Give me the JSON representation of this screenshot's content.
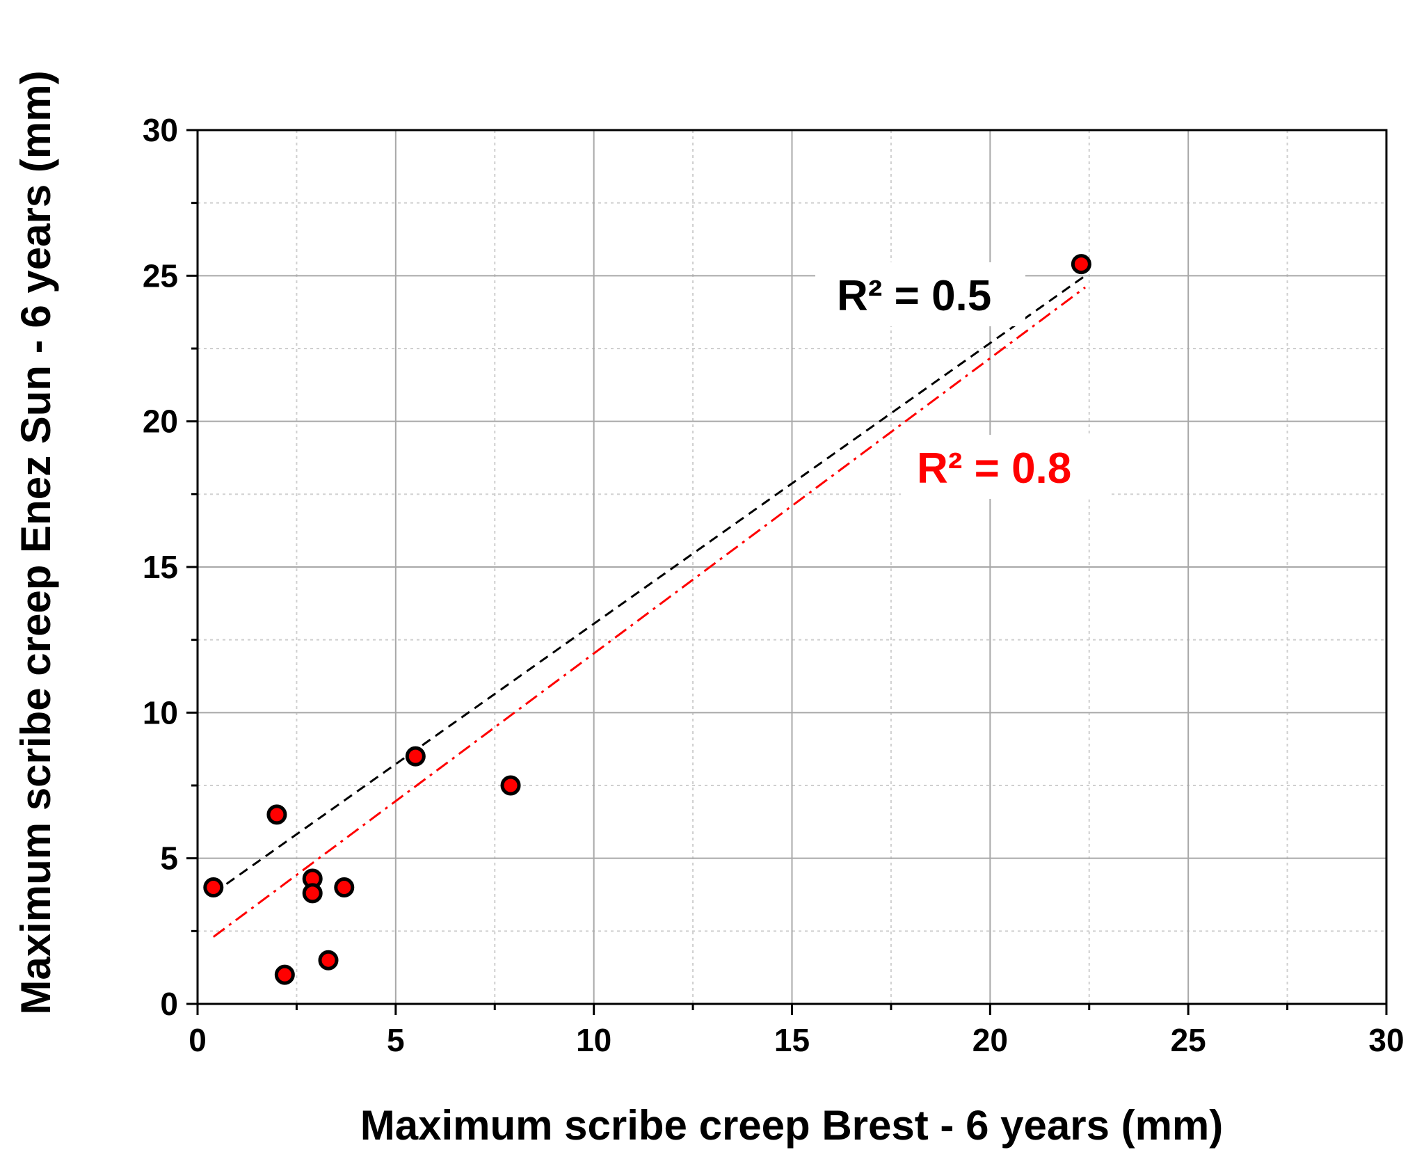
{
  "chart_data": {
    "type": "scatter",
    "xlabel": "Maximum scribe creep Brest - 6 years (mm)",
    "ylabel": "Maximum scribe creep Enez Sun - 6 years (mm)",
    "xlim": [
      0,
      30
    ],
    "ylim": [
      0,
      30
    ],
    "xticks": [
      0,
      5,
      10,
      15,
      20,
      25,
      30
    ],
    "yticks": [
      0,
      5,
      10,
      15,
      20,
      25,
      30
    ],
    "grid": true,
    "points": {
      "x": [
        0.4,
        2.0,
        2.2,
        2.9,
        2.9,
        3.3,
        3.7,
        5.5,
        7.9,
        22.3
      ],
      "y": [
        4.0,
        6.5,
        1.0,
        4.3,
        3.8,
        1.5,
        4.0,
        8.5,
        7.5,
        25.4
      ],
      "marker_fill": "#ff0000",
      "marker_edge": "#000000"
    },
    "fits": [
      {
        "label": "R² = 0.5",
        "color": "#000000",
        "style": "dashed",
        "x": [
          0.4,
          22.4
        ],
        "y": [
          3.8,
          25.0
        ]
      },
      {
        "label": "R² = 0.8",
        "color": "#ff0000",
        "style": "dash-dot",
        "x": [
          0.4,
          22.4
        ],
        "y": [
          2.3,
          24.6
        ]
      }
    ]
  }
}
